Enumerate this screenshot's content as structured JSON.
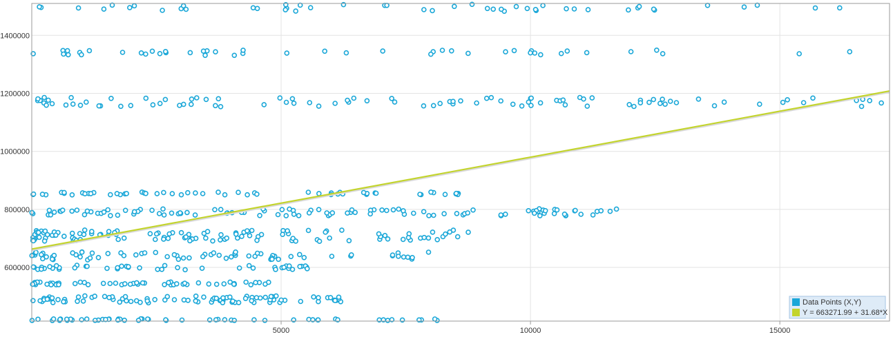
{
  "chart_data": {
    "type": "scatter",
    "title": "",
    "xlabel": "",
    "ylabel": "",
    "xlim": [
      0,
      17200
    ],
    "ylim": [
      415000,
      1510000
    ],
    "x_ticks": [
      5000,
      10000,
      15000
    ],
    "y_ticks": [
      600000,
      800000,
      1000000,
      1200000,
      1400000
    ],
    "grid": true,
    "legend_position": "bottom-right",
    "series": [
      {
        "name": "Data Points (X,Y)",
        "kind": "points",
        "color": "#1aa7d8",
        "bands": [
          {
            "y": 1495000,
            "spread": 12000,
            "x_min": 100,
            "x_max": 16300,
            "count": 48
          },
          {
            "y": 1340000,
            "spread": 9000,
            "x_min": 0,
            "x_max": 17100,
            "count": 46
          },
          {
            "y": 1170000,
            "spread": 16000,
            "x_min": 0,
            "x_max": 17200,
            "count": 95
          },
          {
            "y": 855000,
            "spread": 5000,
            "x_min": 0,
            "x_max": 9000,
            "count": 55
          },
          {
            "y": 790000,
            "spread": 12000,
            "x_min": 0,
            "x_max": 11900,
            "count": 110
          },
          {
            "y": 710000,
            "spread": 20000,
            "x_min": 0,
            "x_max": 8800,
            "count": 115
          },
          {
            "y": 640000,
            "spread": 14000,
            "x_min": 0,
            "x_max": 8300,
            "count": 70
          },
          {
            "y": 600000,
            "spread": 8000,
            "x_min": 0,
            "x_max": 5800,
            "count": 45
          },
          {
            "y": 545000,
            "spread": 5000,
            "x_min": 0,
            "x_max": 5200,
            "count": 55
          },
          {
            "y": 490000,
            "spread": 12000,
            "x_min": 0,
            "x_max": 6200,
            "count": 90
          },
          {
            "y": 420000,
            "spread": 3000,
            "x_min": 0,
            "x_max": 8300,
            "count": 55
          }
        ]
      },
      {
        "name": "Y = 663271.99 + 31.68*X",
        "kind": "line",
        "color": "#c3d42c",
        "intercept": 663271.99,
        "slope": 31.68,
        "x": [
          0,
          17200
        ],
        "y": [
          663271.99,
          1208167.99
        ]
      }
    ]
  }
}
